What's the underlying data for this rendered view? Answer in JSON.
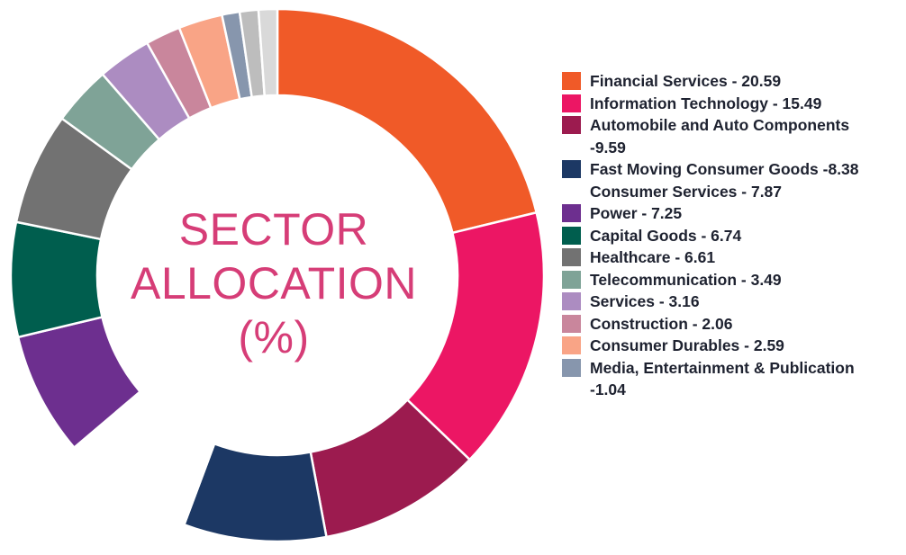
{
  "chart_data": {
    "type": "pie",
    "donut": true,
    "title_lines": [
      "SECTOR",
      "ALLOCATION",
      "(%)"
    ],
    "slices": [
      {
        "label": "Financial Services - 20.59",
        "value": 20.59,
        "color": "#f05a28"
      },
      {
        "label": "Information Technology - 15.49",
        "value": 15.49,
        "color": "#ec1664"
      },
      {
        "label": "Automobile and Auto Components\n-9.59",
        "value": 9.59,
        "color": "#9c1b4f"
      },
      {
        "label": "Fast Moving Consumer Goods -8.38",
        "value": 8.38,
        "color": "#1c3864"
      },
      {
        "label": "Consumer Services - 7.87",
        "value": 7.87,
        "color": "#ffffff"
      },
      {
        "label": "Power - 7.25",
        "value": 7.25,
        "color": "#6d2f8f"
      },
      {
        "label": "Capital Goods - 6.74",
        "value": 6.74,
        "color": "#005e4e"
      },
      {
        "label": "Healthcare - 6.61",
        "value": 6.61,
        "color": "#727272"
      },
      {
        "label": "Telecommunication - 3.49",
        "value": 3.49,
        "color": "#7fa397"
      },
      {
        "label": "Services - 3.16",
        "value": 3.16,
        "color": "#ac8cc1"
      },
      {
        "label": "Construction - 2.06",
        "value": 2.06,
        "color": "#c9869c"
      },
      {
        "label": "Consumer Durables - 2.59",
        "value": 2.59,
        "color": "#f9a486"
      },
      {
        "label": "Media, Entertainment & Publication\n-1.04",
        "value": 1.04,
        "color": "#8796ad"
      }
    ],
    "extra_unlabeled_slices": [
      {
        "value": 1.1,
        "color": "#bdbdbd"
      },
      {
        "value": 1.1,
        "color": "#d9d9d9"
      }
    ],
    "legend_position": "right"
  }
}
